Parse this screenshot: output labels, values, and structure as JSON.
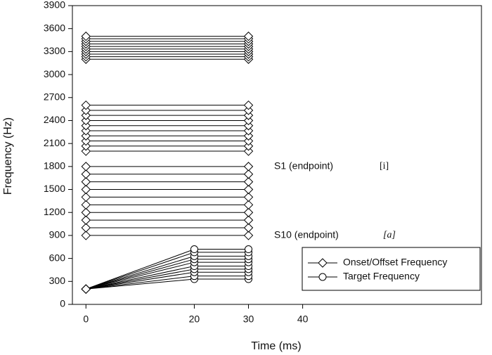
{
  "chart_data": {
    "type": "line",
    "x_label": "Time (ms)",
    "y_label": "Frequency (Hz)",
    "xlim": [
      -2.5,
      73
    ],
    "ylim": [
      0,
      3900
    ],
    "xticks": [
      0,
      20,
      30,
      40
    ],
    "yticks": [
      0,
      300,
      600,
      900,
      1200,
      1500,
      1800,
      2100,
      2400,
      2700,
      3000,
      3300,
      3600,
      3900
    ],
    "legend": "lower right",
    "series": [
      {
        "name": "Onset/Offset Frequency",
        "marker": "diamond",
        "color": "#000000",
        "x": [
          0,
          30
        ],
        "lines": [
          [
            3200,
            3200
          ],
          [
            3233,
            3233
          ],
          [
            3267,
            3267
          ],
          [
            3300,
            3300
          ],
          [
            3333,
            3333
          ],
          [
            3367,
            3367
          ],
          [
            3400,
            3400
          ],
          [
            3433,
            3433
          ],
          [
            3467,
            3467
          ],
          [
            3500,
            3500
          ],
          [
            2000,
            2000
          ],
          [
            2067,
            2067
          ],
          [
            2133,
            2133
          ],
          [
            2200,
            2200
          ],
          [
            2267,
            2267
          ],
          [
            2333,
            2333
          ],
          [
            2400,
            2400
          ],
          [
            2467,
            2467
          ],
          [
            2533,
            2533
          ],
          [
            2600,
            2600
          ],
          [
            900,
            900
          ],
          [
            1000,
            1000
          ],
          [
            1100,
            1100
          ],
          [
            1200,
            1200
          ],
          [
            1300,
            1300
          ],
          [
            1400,
            1400
          ],
          [
            1500,
            1500
          ],
          [
            1600,
            1600
          ],
          [
            1700,
            1700
          ],
          [
            1800,
            1800
          ]
        ]
      },
      {
        "name": "Target Frequency",
        "marker": "circle",
        "start_marker": "diamond",
        "color": "#000000",
        "x": [
          0,
          20,
          30
        ],
        "lines": [
          [
            200,
            330,
            330
          ],
          [
            200,
            370,
            370
          ],
          [
            200,
            420,
            420
          ],
          [
            200,
            460,
            460
          ],
          [
            200,
            500,
            500
          ],
          [
            200,
            550,
            550
          ],
          [
            200,
            590,
            590
          ],
          [
            200,
            630,
            630
          ],
          [
            200,
            680,
            680
          ],
          [
            200,
            720,
            720
          ]
        ]
      }
    ],
    "annotations": [
      "S1 (endpoint)",
      "[i]",
      "S10 (endpoint)",
      "[a]"
    ]
  }
}
